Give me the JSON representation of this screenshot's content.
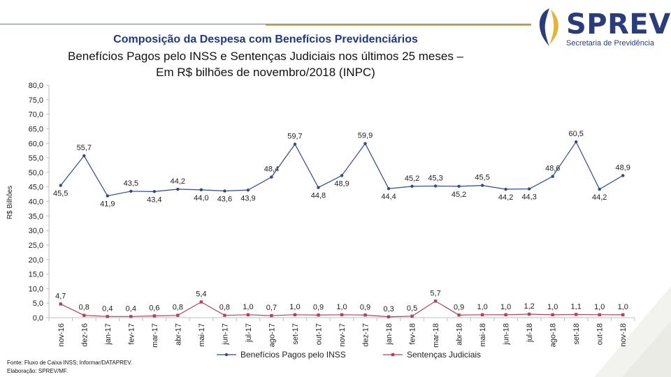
{
  "header": {
    "title_line1": "Composição da Despesa com Benefícios Previdenciários",
    "title_line2": "Benefícios Pagos pelo INSS e Sentenças Judiciais nos últimos 25 meses –",
    "title_line3": "Em R$ bilhões de novembro/2018 (INPC)"
  },
  "logo": {
    "name": "SPREV",
    "subtitle": "Secretaria de Previdência",
    "icon": "sprev-logo-icon"
  },
  "footer": {
    "source": "Fonte: Fluxo de Caixa INSS; Informar/DATAPREV.",
    "prepared": "Elaboração: SPREV/MF."
  },
  "colors": {
    "inss": "#2e4a8c",
    "sentencas": "#b5405c",
    "title": "#1f3a7a",
    "gold": "#d9b13b"
  },
  "chart_data": {
    "type": "line",
    "title": "",
    "xlabel": "",
    "ylabel": "R$ Bilhões",
    "ylim": [
      0,
      80
    ],
    "yticks": [
      "0,0",
      "5,0",
      "10,0",
      "15,0",
      "20,0",
      "25,0",
      "30,0",
      "35,0",
      "40,0",
      "45,0",
      "50,0",
      "55,0",
      "60,0",
      "65,0",
      "70,0",
      "75,0",
      "80,0"
    ],
    "categories": [
      "nov-16",
      "dez-16",
      "jan-17",
      "fev-17",
      "mar-17",
      "abr-17",
      "mai-17",
      "jun-17",
      "jul-17",
      "ago-17",
      "set-17",
      "out-17",
      "nov-17",
      "dez-17",
      "jan-18",
      "fev-18",
      "mar-18",
      "abr-18",
      "mai-18",
      "jun-18",
      "jul-18",
      "ago-18",
      "set-18",
      "out-18",
      "nov-18"
    ],
    "series": [
      {
        "name": "Benefícios Pagos pelo INSS",
        "values": [
          45.5,
          55.7,
          41.9,
          43.5,
          43.4,
          44.2,
          44.0,
          43.6,
          43.9,
          48.4,
          59.7,
          44.8,
          48.9,
          59.9,
          44.4,
          45.2,
          45.3,
          45.2,
          45.5,
          44.2,
          44.3,
          48.6,
          60.5,
          44.2,
          48.9
        ],
        "labels": [
          "45,5",
          "55,7",
          "41,9",
          "43,5",
          "43,4",
          "44,2",
          "44,0",
          "43,6",
          "43,9",
          "48,4",
          "59,7",
          "44,8",
          "48,9",
          "59,9",
          "44,4",
          "45,2",
          "45,3",
          "45,2",
          "45,5",
          "44,2",
          "44,3",
          "48,6",
          "60,5",
          "44,2",
          "48,9"
        ]
      },
      {
        "name": "Sentenças Judiciais",
        "values": [
          4.7,
          0.8,
          0.4,
          0.4,
          0.6,
          0.8,
          5.4,
          0.8,
          1.0,
          0.7,
          1.0,
          0.9,
          1.0,
          0.9,
          0.3,
          0.5,
          5.7,
          0.9,
          1.0,
          1.0,
          1.2,
          1.0,
          1.1,
          1.0,
          1.0
        ],
        "labels": [
          "4,7",
          "0,8",
          "0,4",
          "0,4",
          "0,6",
          "0,8",
          "5,4",
          "0,8",
          "1,0",
          "0,7",
          "1,0",
          "0,9",
          "1,0",
          "0,9",
          "0,3",
          "0,5",
          "5,7",
          "0,9",
          "1,0",
          "1,0",
          "1,2",
          "1,0",
          "1,1",
          "1,0",
          "1,0"
        ]
      }
    ],
    "legend": "bottom"
  }
}
